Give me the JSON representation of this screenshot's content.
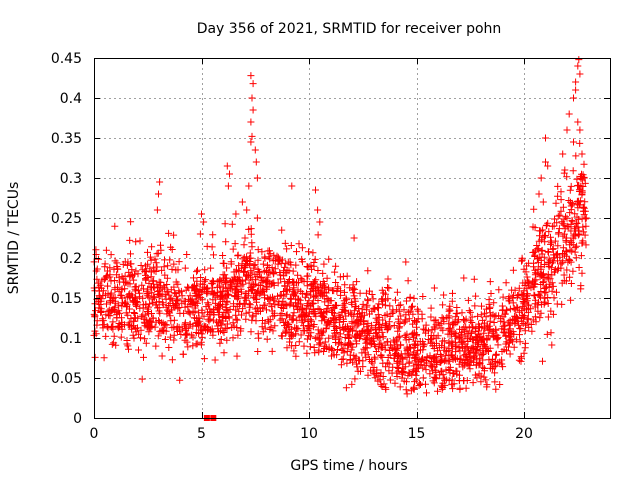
{
  "chart_data": {
    "type": "scatter",
    "title": "Day 356 of 2021, SRMTID for receiver pohn",
    "xlabel": "GPS time / hours",
    "ylabel": "SRMTID / TECUs",
    "xlim": [
      0,
      24
    ],
    "ylim": [
      0,
      0.45
    ],
    "xticks": [
      0,
      5,
      10,
      15,
      20
    ],
    "xtick_labels": [
      "0",
      "5",
      "10",
      "15",
      "20"
    ],
    "yticks": [
      0,
      0.05,
      0.1,
      0.15,
      0.2,
      0.25,
      0.3,
      0.35,
      0.4,
      0.45
    ],
    "ytick_labels": [
      "0",
      "0.05",
      "0.1",
      "0.15",
      "0.2",
      "0.25",
      "0.3",
      "0.35",
      "0.4",
      "0.45"
    ],
    "grid": true,
    "marker": "plus",
    "color": "#ff0000",
    "series": [
      {
        "name": "SRMTID",
        "note": "dense scatter approximated by a baseline profile plus seeded scatter",
        "baseline": [
          {
            "x": 0.0,
            "y": 0.145
          },
          {
            "x": 1.0,
            "y": 0.15
          },
          {
            "x": 2.0,
            "y": 0.14
          },
          {
            "x": 3.0,
            "y": 0.15
          },
          {
            "x": 4.0,
            "y": 0.135
          },
          {
            "x": 5.0,
            "y": 0.13
          },
          {
            "x": 6.0,
            "y": 0.145
          },
          {
            "x": 7.0,
            "y": 0.175
          },
          {
            "x": 8.0,
            "y": 0.16
          },
          {
            "x": 9.0,
            "y": 0.145
          },
          {
            "x": 10.0,
            "y": 0.14
          },
          {
            "x": 11.0,
            "y": 0.125
          },
          {
            "x": 12.0,
            "y": 0.11
          },
          {
            "x": 13.0,
            "y": 0.1
          },
          {
            "x": 14.0,
            "y": 0.095
          },
          {
            "x": 15.0,
            "y": 0.085
          },
          {
            "x": 16.0,
            "y": 0.085
          },
          {
            "x": 17.0,
            "y": 0.09
          },
          {
            "x": 18.0,
            "y": 0.09
          },
          {
            "x": 19.0,
            "y": 0.1
          },
          {
            "x": 19.8,
            "y": 0.125
          },
          {
            "x": 20.5,
            "y": 0.17
          },
          {
            "x": 21.5,
            "y": 0.2
          },
          {
            "x": 22.5,
            "y": 0.25
          },
          {
            "x": 22.9,
            "y": 0.27
          }
        ],
        "count": 2600,
        "spread": 0.03,
        "spikes": [
          {
            "x": 3.05,
            "y": 0.295
          },
          {
            "x": 3.0,
            "y": 0.28
          },
          {
            "x": 2.95,
            "y": 0.26
          },
          {
            "x": 5.0,
            "y": 0.255
          },
          {
            "x": 5.1,
            "y": 0.245
          },
          {
            "x": 4.95,
            "y": 0.23
          },
          {
            "x": 6.2,
            "y": 0.315
          },
          {
            "x": 6.3,
            "y": 0.305
          },
          {
            "x": 6.25,
            "y": 0.29
          },
          {
            "x": 7.3,
            "y": 0.428
          },
          {
            "x": 7.4,
            "y": 0.418
          },
          {
            "x": 7.35,
            "y": 0.4
          },
          {
            "x": 7.4,
            "y": 0.385
          },
          {
            "x": 7.3,
            "y": 0.37
          },
          {
            "x": 7.35,
            "y": 0.352
          },
          {
            "x": 7.3,
            "y": 0.345
          },
          {
            "x": 7.5,
            "y": 0.335
          },
          {
            "x": 7.55,
            "y": 0.32
          },
          {
            "x": 7.6,
            "y": 0.3
          },
          {
            "x": 7.2,
            "y": 0.29
          },
          {
            "x": 6.9,
            "y": 0.27
          },
          {
            "x": 7.1,
            "y": 0.26
          },
          {
            "x": 7.6,
            "y": 0.25
          },
          {
            "x": 6.6,
            "y": 0.255
          },
          {
            "x": 9.2,
            "y": 0.29
          },
          {
            "x": 10.3,
            "y": 0.285
          },
          {
            "x": 10.4,
            "y": 0.26
          },
          {
            "x": 10.5,
            "y": 0.245
          },
          {
            "x": 12.1,
            "y": 0.225
          },
          {
            "x": 14.5,
            "y": 0.195
          },
          {
            "x": 17.2,
            "y": 0.175
          },
          {
            "x": 20.8,
            "y": 0.3
          },
          {
            "x": 20.7,
            "y": 0.28
          },
          {
            "x": 21.0,
            "y": 0.35
          },
          {
            "x": 21.0,
            "y": 0.32
          },
          {
            "x": 21.1,
            "y": 0.315
          },
          {
            "x": 20.9,
            "y": 0.27
          },
          {
            "x": 21.8,
            "y": 0.33
          },
          {
            "x": 21.9,
            "y": 0.31
          },
          {
            "x": 22.0,
            "y": 0.36
          },
          {
            "x": 22.1,
            "y": 0.38
          },
          {
            "x": 22.3,
            "y": 0.4
          },
          {
            "x": 22.4,
            "y": 0.42
          },
          {
            "x": 22.5,
            "y": 0.44
          },
          {
            "x": 22.55,
            "y": 0.448
          },
          {
            "x": 22.6,
            "y": 0.43
          },
          {
            "x": 22.4,
            "y": 0.41
          },
          {
            "x": 22.5,
            "y": 0.37
          },
          {
            "x": 22.6,
            "y": 0.36
          },
          {
            "x": 22.3,
            "y": 0.345
          },
          {
            "x": 22.7,
            "y": 0.33
          },
          {
            "x": 22.8,
            "y": 0.3
          },
          {
            "x": 22.7,
            "y": 0.28
          },
          {
            "x": 22.2,
            "y": 0.265
          },
          {
            "x": 22.9,
            "y": 0.25
          },
          {
            "x": 21.4,
            "y": 0.24
          },
          {
            "x": 21.6,
            "y": 0.23
          }
        ],
        "zero_points": [
          {
            "x": 5.25,
            "y": 0.0
          },
          {
            "x": 5.55,
            "y": 0.0
          }
        ]
      }
    ]
  }
}
